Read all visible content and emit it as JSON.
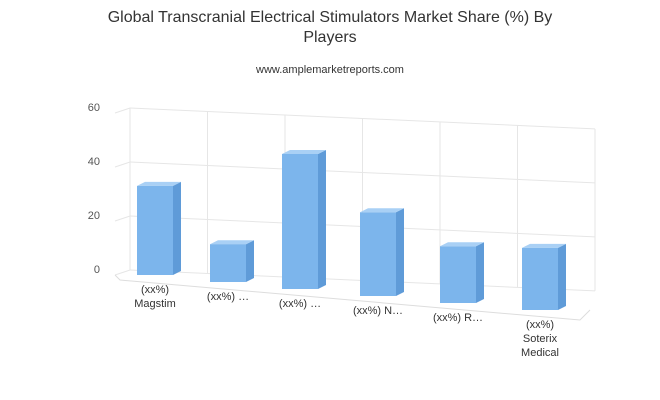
{
  "chart_data": {
    "type": "bar3d",
    "title": "Global Transcranial Electrical Stimulators Market Share (%) By Players",
    "subtitle": "www.amplemarketreports.com",
    "categories": [
      "(xx%) Magstim",
      "(xx%) …",
      "(xx%) …",
      "(xx%) N…",
      "(xx%) R…",
      "(xx%) Soterix Medical"
    ],
    "values": [
      33,
      14,
      50,
      31,
      21,
      23
    ],
    "color": "#7cb5ec",
    "ylim": [
      0,
      60
    ],
    "yticks": [
      0,
      20,
      40,
      60
    ],
    "grid": true
  }
}
